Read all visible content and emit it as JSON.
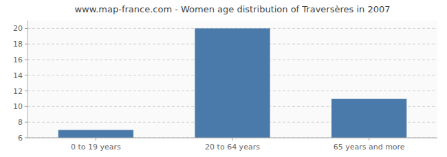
{
  "chart_data": {
    "type": "bar",
    "title": "www.map-france.com - Women age distribution of Traversères in 2007",
    "categories": [
      "0 to 19 years",
      "20 to 64 years",
      "65 years and more"
    ],
    "values": [
      7,
      20,
      11
    ],
    "color": "#4a7aaa",
    "ylim": [
      6,
      21
    ],
    "yticks": [
      6,
      8,
      10,
      12,
      14,
      16,
      18,
      20
    ],
    "grid": true
  }
}
